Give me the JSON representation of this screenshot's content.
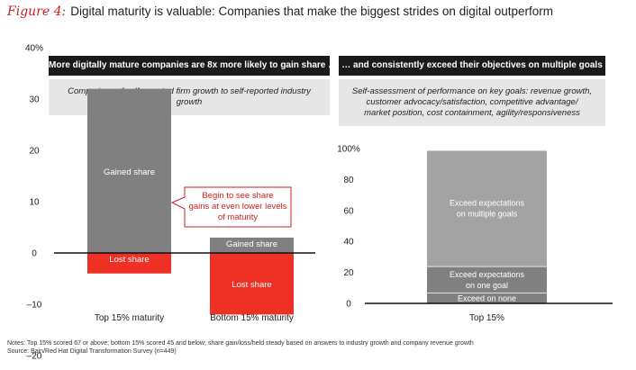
{
  "figure": {
    "label": "Figure 4:",
    "title": "Digital maturity is valuable: Companies that make the biggest strides on digital outperform"
  },
  "left_panel": {
    "header": "More digitally mature companies are 8x more likely to gain share …",
    "subtitle": "Comparison of self-reported firm growth to self-reported industry growth",
    "callout": [
      "Begin to see share",
      "gains at even lower levels",
      "of maturity"
    ]
  },
  "right_panel": {
    "header": "… and consistently exceed their objectives on multiple goals",
    "subtitle_lines": [
      "Self-assessment of performance on key goals: revenue growth,",
      "customer advocacy/satisfaction, competitive advantage/",
      "market position, cost containment, agility/responsiveness"
    ]
  },
  "notes": [
    "Notes: Top 15% scored 67 or above; bottom 15% scored 45 and below; share gain/loss/held steady based on answers to industry growth and company revenue growth",
    "Source: Bain/Red Hat Digital Transformation Survey (n=449)"
  ],
  "colors": {
    "gray": "#808080",
    "red": "#ee3124",
    "callout_border": "#cc1f1f",
    "axis": "#111111"
  },
  "chart_data": [
    {
      "type": "bar",
      "stacking": "diverging",
      "categories": [
        "Top 15% maturity",
        "Bottom 15% maturity"
      ],
      "series": [
        {
          "name": "Gained share",
          "values": [
            32,
            3
          ],
          "color": "#808080"
        },
        {
          "name": "Lost share",
          "values": [
            -4,
            -12
          ],
          "color": "#ee3124"
        }
      ],
      "ylim": [
        -20,
        40
      ],
      "yticks": [
        -20,
        -10,
        0,
        10,
        20,
        30,
        40
      ],
      "ytick_labels": [
        "–20",
        "–10",
        "0",
        "10",
        "20",
        "30",
        "40%"
      ],
      "grid": false,
      "legend": "none"
    },
    {
      "type": "bar",
      "stacking": "stacked",
      "categories": [
        "Top 15%"
      ],
      "series": [
        {
          "name": "Exceed on none",
          "values": [
            7
          ],
          "color": "#808080"
        },
        {
          "name": "Exceed expectations on one goal",
          "lines": [
            "Exceed expectations",
            "on one goal"
          ],
          "values": [
            17
          ],
          "color": "#808080"
        },
        {
          "name": "Exceed expectations on multiple goals",
          "lines": [
            "Exceed expectations",
            "on multiple goals"
          ],
          "values": [
            75
          ],
          "color": "#a3a3a3"
        }
      ],
      "ylim": [
        0,
        100
      ],
      "yticks": [
        0,
        20,
        40,
        60,
        80,
        100
      ],
      "ytick_labels": [
        "0",
        "20",
        "40",
        "60",
        "80",
        "100%"
      ],
      "grid": false,
      "legend": "none"
    }
  ]
}
